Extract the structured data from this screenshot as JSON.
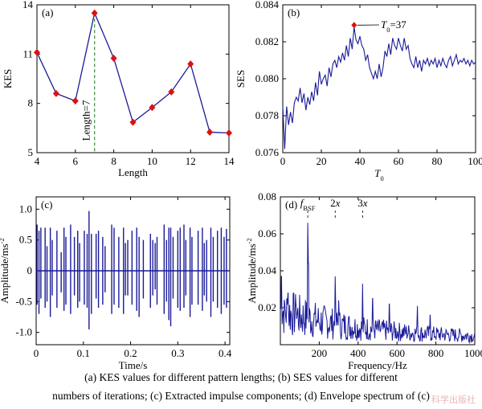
{
  "chart_data": [
    {
      "panel": "(a)",
      "type": "line",
      "xlabel": "Length",
      "ylabel": "KES",
      "xlim": [
        4,
        14
      ],
      "ylim": [
        5,
        14
      ],
      "xticks": [
        4,
        6,
        8,
        10,
        12,
        14
      ],
      "yticks": [
        5,
        8,
        11,
        14
      ],
      "x": [
        4,
        5,
        6,
        7,
        8,
        9,
        10,
        11,
        12,
        13,
        14
      ],
      "y": [
        11.1,
        8.6,
        8.15,
        13.5,
        10.75,
        6.85,
        7.75,
        8.7,
        10.4,
        6.25,
        6.2
      ],
      "marker": "diamond",
      "line_color": "#1a1a99",
      "marker_color": "#dd1111",
      "annotation": {
        "text": "Length=7",
        "x": 7
      }
    },
    {
      "panel": "(b)",
      "type": "line",
      "xlabel": "T",
      "xlabel_sub": "0",
      "ylabel": "SES",
      "xlim": [
        0,
        100
      ],
      "ylim": [
        0.076,
        0.084
      ],
      "xticks": [
        0,
        20,
        40,
        60,
        80,
        100
      ],
      "yticks": [
        0.076,
        0.078,
        0.08,
        0.082,
        0.084
      ],
      "x": [
        0,
        1,
        2,
        3,
        4,
        5,
        6,
        7,
        8,
        9,
        10,
        11,
        12,
        13,
        14,
        15,
        16,
        17,
        18,
        19,
        20,
        21,
        22,
        23,
        24,
        25,
        26,
        27,
        28,
        29,
        30,
        31,
        32,
        33,
        34,
        35,
        36,
        37,
        38,
        39,
        40,
        41,
        42,
        43,
        44,
        45,
        46,
        47,
        48,
        49,
        50,
        51,
        52,
        53,
        54,
        55,
        56,
        57,
        58,
        59,
        60,
        61,
        62,
        63,
        64,
        65,
        66,
        67,
        68,
        69,
        70,
        71,
        72,
        73,
        74,
        75,
        76,
        77,
        78,
        79,
        80,
        81,
        82,
        83,
        84,
        85,
        86,
        87,
        88,
        89,
        90,
        91,
        92,
        93,
        94,
        95,
        96,
        97,
        98,
        99,
        100
      ],
      "y": [
        0.0785,
        0.0762,
        0.0785,
        0.0775,
        0.0782,
        0.0776,
        0.0787,
        0.079,
        0.0788,
        0.0795,
        0.0787,
        0.0792,
        0.0783,
        0.079,
        0.0786,
        0.0793,
        0.0788,
        0.0798,
        0.0791,
        0.0804,
        0.0797,
        0.08,
        0.0802,
        0.0796,
        0.0806,
        0.0801,
        0.0808,
        0.081,
        0.0806,
        0.0812,
        0.0809,
        0.0814,
        0.081,
        0.0818,
        0.0812,
        0.0822,
        0.0816,
        0.0828,
        0.0821,
        0.0819,
        0.0823,
        0.0818,
        0.0816,
        0.081,
        0.0813,
        0.0806,
        0.0803,
        0.08,
        0.0804,
        0.08,
        0.0808,
        0.0801,
        0.0806,
        0.0815,
        0.0812,
        0.0819,
        0.0813,
        0.0822,
        0.0818,
        0.0816,
        0.0822,
        0.0818,
        0.0815,
        0.0822,
        0.0816,
        0.0818,
        0.0811,
        0.0808,
        0.0806,
        0.0812,
        0.0806,
        0.081,
        0.0804,
        0.081,
        0.0808,
        0.0811,
        0.0807,
        0.081,
        0.0808,
        0.0811,
        0.0806,
        0.081,
        0.0807,
        0.0811,
        0.0808,
        0.0806,
        0.081,
        0.0812,
        0.0807,
        0.081,
        0.0813,
        0.0808,
        0.081,
        0.0809,
        0.0811,
        0.0808,
        0.081,
        0.0807,
        0.081,
        0.0808,
        0.0809
      ],
      "line_color": "#1a1a99",
      "annotation": {
        "label": "T",
        "sub": "0",
        "text": "=37",
        "x": 37,
        "y": 0.0829
      }
    },
    {
      "panel": "(c)",
      "type": "line",
      "xlabel": "Time/s",
      "ylabel": "Amplitude/ms",
      "ylabel_sup": "-2",
      "xlim": [
        0,
        0.41
      ],
      "ylim": [
        -1.2,
        1.2
      ],
      "xticks": [
        0,
        0.1,
        0.2,
        0.3,
        0.4
      ],
      "xtick_labels": [
        "0",
        "0.1",
        "0.2",
        "0.3",
        "0.4"
      ],
      "yticks": [
        -1.0,
        -0.5,
        0,
        0.5,
        1.0
      ],
      "ytick_labels": [
        "-1.0",
        "-0.5",
        "0",
        "0.5",
        "1.0"
      ],
      "impulses": [
        {
          "t": 0.002,
          "hi": 0.75,
          "lo": -0.55
        },
        {
          "t": 0.006,
          "hi": 0.65,
          "lo": -0.7
        },
        {
          "t": 0.01,
          "hi": 0.7,
          "lo": -0.45
        },
        {
          "t": 0.019,
          "hi": 0.7,
          "lo": -0.6
        },
        {
          "t": 0.023,
          "hi": 0.4,
          "lo": -0.5
        },
        {
          "t": 0.03,
          "hi": 0.7,
          "lo": -0.75
        },
        {
          "t": 0.034,
          "hi": 0.5,
          "lo": -0.4
        },
        {
          "t": 0.044,
          "hi": 0.65,
          "lo": -0.6
        },
        {
          "t": 0.053,
          "hi": 0.3,
          "lo": -0.35
        },
        {
          "t": 0.059,
          "hi": 0.7,
          "lo": -0.65
        },
        {
          "t": 0.063,
          "hi": 0.55,
          "lo": -0.55
        },
        {
          "t": 0.073,
          "hi": 0.75,
          "lo": -0.7
        },
        {
          "t": 0.081,
          "hi": 0.55,
          "lo": -0.4
        },
        {
          "t": 0.088,
          "hi": 0.65,
          "lo": -0.6
        },
        {
          "t": 0.092,
          "hi": 0.45,
          "lo": -0.5
        },
        {
          "t": 0.102,
          "hi": 0.65,
          "lo": -0.55
        },
        {
          "t": 0.108,
          "hi": 0.6,
          "lo": -0.6
        },
        {
          "t": 0.112,
          "hi": 0.97,
          "lo": -0.95
        },
        {
          "t": 0.117,
          "hi": 0.6,
          "lo": -0.7
        },
        {
          "t": 0.127,
          "hi": 0.6,
          "lo": -0.45
        },
        {
          "t": 0.132,
          "hi": 0.65,
          "lo": -0.6
        },
        {
          "t": 0.141,
          "hi": 0.55,
          "lo": -0.55
        },
        {
          "t": 0.146,
          "hi": 0.4,
          "lo": -0.35
        },
        {
          "t": 0.16,
          "hi": 0.75,
          "lo": -0.7
        },
        {
          "t": 0.165,
          "hi": 0.7,
          "lo": -0.55
        },
        {
          "t": 0.175,
          "hi": 0.55,
          "lo": -0.6
        },
        {
          "t": 0.185,
          "hi": 0.7,
          "lo": -0.7
        },
        {
          "t": 0.189,
          "hi": 0.45,
          "lo": -0.4
        },
        {
          "t": 0.194,
          "hi": 0.5,
          "lo": -0.4
        },
        {
          "t": 0.203,
          "hi": 0.65,
          "lo": -0.55
        },
        {
          "t": 0.213,
          "hi": 0.7,
          "lo": -0.65
        },
        {
          "t": 0.218,
          "hi": 0.55,
          "lo": -0.75
        },
        {
          "t": 0.227,
          "hi": 0.5,
          "lo": -0.45
        },
        {
          "t": 0.242,
          "hi": 0.6,
          "lo": -0.6
        },
        {
          "t": 0.247,
          "hi": 0.5,
          "lo": -0.4
        },
        {
          "t": 0.252,
          "hi": 0.45,
          "lo": -0.3
        },
        {
          "t": 0.256,
          "hi": 0.55,
          "lo": -0.55
        },
        {
          "t": 0.271,
          "hi": 0.75,
          "lo": -0.7
        },
        {
          "t": 0.276,
          "hi": 0.5,
          "lo": -0.5
        },
        {
          "t": 0.281,
          "hi": 0.7,
          "lo": -0.8
        },
        {
          "t": 0.285,
          "hi": 0.7,
          "lo": -0.9
        },
        {
          "t": 0.29,
          "hi": 0.55,
          "lo": -0.45
        },
        {
          "t": 0.3,
          "hi": 0.65,
          "lo": -0.6
        },
        {
          "t": 0.305,
          "hi": 0.7,
          "lo": -0.65
        },
        {
          "t": 0.313,
          "hi": 0.75,
          "lo": -0.6
        },
        {
          "t": 0.317,
          "hi": 0.5,
          "lo": -0.4
        },
        {
          "t": 0.326,
          "hi": 0.7,
          "lo": -0.75
        },
        {
          "t": 0.33,
          "hi": 0.55,
          "lo": -0.55
        },
        {
          "t": 0.343,
          "hi": 0.65,
          "lo": -0.55
        },
        {
          "t": 0.352,
          "hi": 0.7,
          "lo": -0.65
        },
        {
          "t": 0.356,
          "hi": 0.45,
          "lo": -0.4
        },
        {
          "t": 0.361,
          "hi": 0.5,
          "lo": -0.5
        },
        {
          "t": 0.37,
          "hi": 0.7,
          "lo": -0.75
        },
        {
          "t": 0.375,
          "hi": 0.55,
          "lo": -0.5
        },
        {
          "t": 0.384,
          "hi": 0.65,
          "lo": -0.6
        },
        {
          "t": 0.392,
          "hi": 0.7,
          "lo": -0.7
        },
        {
          "t": 0.398,
          "hi": 0.55,
          "lo": -0.55
        },
        {
          "t": 0.403,
          "hi": 0.68,
          "lo": -0.6
        }
      ],
      "line_color": "#1a1a99"
    },
    {
      "panel": "(d)",
      "type": "line",
      "xlabel": "Frequency/Hz",
      "ylabel": "Amplitude/ms",
      "ylabel_sup": "-2",
      "xlim": [
        0,
        1000
      ],
      "ylim": [
        0,
        0.08
      ],
      "xticks": [
        200,
        400,
        600,
        800,
        1000
      ],
      "yticks": [
        0,
        0.02,
        0.04,
        0.06,
        0.08
      ],
      "ytick_labels": [
        "",
        "0.02",
        "0.04",
        "0.06",
        "0.08"
      ],
      "noise_seed": 7,
      "peaks": [
        {
          "f": 5,
          "a": 0.037
        },
        {
          "f": 20,
          "a": 0.024
        },
        {
          "f": 40,
          "a": 0.028
        },
        {
          "f": 80,
          "a": 0.022
        },
        {
          "f": 141,
          "a": 0.066
        },
        {
          "f": 145,
          "a": 0.044
        },
        {
          "f": 282,
          "a": 0.037
        },
        {
          "f": 300,
          "a": 0.024
        },
        {
          "f": 423,
          "a": 0.033
        },
        {
          "f": 475,
          "a": 0.025
        },
        {
          "f": 560,
          "a": 0.022
        },
        {
          "f": 705,
          "a": 0.021
        },
        {
          "f": 770,
          "a": 0.016
        }
      ],
      "markers": [
        {
          "f": 141,
          "label": "f",
          "sub": "BSF"
        },
        {
          "f": 282,
          "label": "2x"
        },
        {
          "f": 423,
          "label": "3x"
        }
      ],
      "line_color": "#1a1a99"
    }
  ],
  "caption": {
    "line1": "(a) KES values for different pattern lengths; (b) SES values for different",
    "line2": "numbers of iterations; (c) Extracted impulse components; (d) Envelope spectrum of (c)"
  },
  "watermark": "科学出版社"
}
